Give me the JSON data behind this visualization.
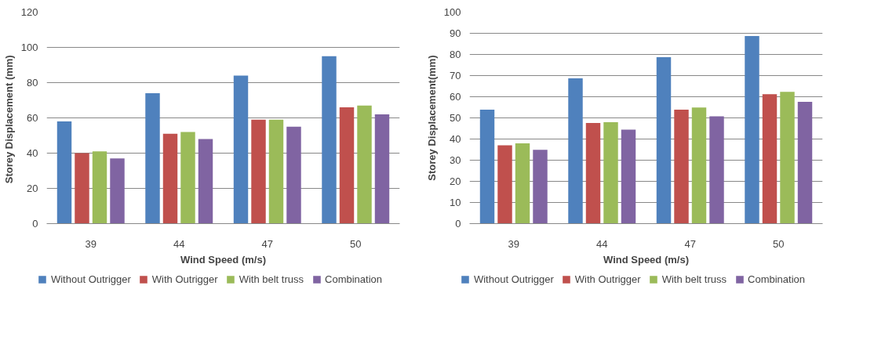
{
  "chart_data": [
    {
      "type": "bar",
      "xlabel": "Wind Speed (m/s)",
      "ylabel": "Storey Displacement  (mm)",
      "categories": [
        "39",
        "44",
        "47",
        "50"
      ],
      "ylim": [
        0,
        120
      ],
      "yticks": [
        0,
        20,
        40,
        60,
        80,
        100,
        120
      ],
      "grid": "y",
      "legend": "bottom",
      "series": [
        {
          "name": "Without Outrigger",
          "color": "#4f81bd",
          "values": [
            58,
            74,
            84,
            95
          ]
        },
        {
          "name": "With Outrigger",
          "color": "#c0504d",
          "values": [
            40,
            51,
            59,
            66
          ]
        },
        {
          "name": "With belt truss",
          "color": "#9bbb59",
          "values": [
            41,
            52,
            59,
            67
          ]
        },
        {
          "name": "Combination",
          "color": "#8064a2",
          "values": [
            37,
            48,
            55,
            62
          ]
        }
      ]
    },
    {
      "type": "bar",
      "xlabel": "Wind Speed (m/s)",
      "ylabel": "Storey Displacement(mm)",
      "categories": [
        "39",
        "44",
        "47",
        "50"
      ],
      "ylim": [
        0,
        100
      ],
      "yticks": [
        0,
        10,
        20,
        30,
        40,
        50,
        60,
        70,
        80,
        90,
        100
      ],
      "grid": "y",
      "legend": "bottom",
      "series": [
        {
          "name": "Without Outrigger",
          "color": "#4f81bd",
          "values": [
            53.9,
            68.7,
            78.7,
            88.7
          ]
        },
        {
          "name": "With Outrigger",
          "color": "#c0504d",
          "values": [
            37,
            47.6,
            53.9,
            61.2
          ]
        },
        {
          "name": "With belt truss",
          "color": "#9bbb59",
          "values": [
            38,
            48,
            54.9,
            62.3
          ]
        },
        {
          "name": "Combination",
          "color": "#8064a2",
          "values": [
            34.9,
            44.4,
            50.7,
            57.6
          ]
        }
      ]
    }
  ]
}
